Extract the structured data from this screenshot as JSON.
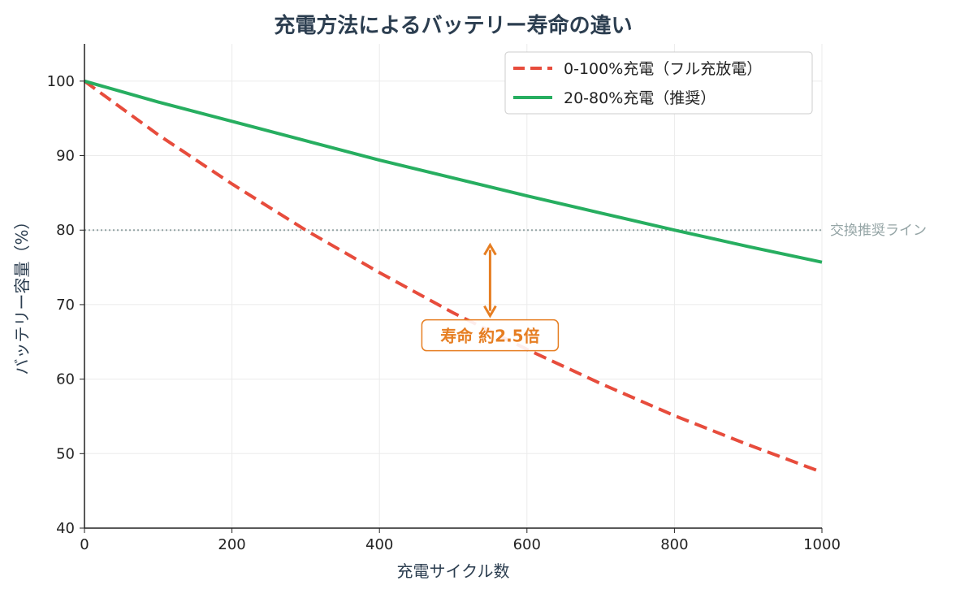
{
  "chart_data": {
    "type": "line",
    "title": "充電方法によるバッテリー寿命の違い",
    "xlabel": "充電サイクル数",
    "ylabel": "バッテリー容量（%）",
    "xlim": [
      0,
      1000
    ],
    "ylim": [
      40,
      105
    ],
    "xticks": [
      0,
      200,
      400,
      600,
      800,
      1000
    ],
    "yticks": [
      40,
      50,
      60,
      70,
      80,
      90,
      100
    ],
    "grid": true,
    "legend_position": "top-right",
    "x": [
      0,
      100,
      200,
      300,
      400,
      500,
      600,
      700,
      800,
      900,
      1000
    ],
    "series": [
      {
        "name": "0-100%充電（フル充放電）",
        "color": "#e74c3c",
        "style": "dashed",
        "values": [
          100,
          92.8,
          86.2,
          80.0,
          74.3,
          68.9,
          64.0,
          59.4,
          55.1,
          51.2,
          47.5
        ]
      },
      {
        "name": "20-80%充電（推奨）",
        "color": "#27ae60",
        "style": "solid",
        "values": [
          100,
          97.2,
          94.6,
          92.0,
          89.4,
          87.0,
          84.6,
          82.3,
          80.0,
          77.8,
          75.7
        ]
      }
    ],
    "reference_line": {
      "y": 80,
      "label": "交換推奨ライン",
      "color": "#95a5a6",
      "style": "dotted"
    },
    "annotation": {
      "text": "寿命 約2.5倍",
      "x": 550,
      "arrow_from": 68.5,
      "arrow_to": 78,
      "color": "#e67e22"
    }
  }
}
